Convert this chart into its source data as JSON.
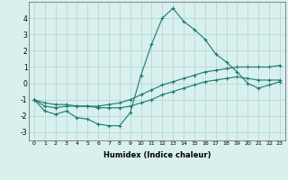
{
  "xlabel": "Humidex (Indice chaleur)",
  "x": [
    0,
    1,
    2,
    3,
    4,
    5,
    6,
    7,
    8,
    9,
    10,
    11,
    12,
    13,
    14,
    15,
    16,
    17,
    18,
    19,
    20,
    21,
    22,
    23
  ],
  "line1": [
    -1.0,
    -1.7,
    -1.9,
    -1.7,
    -2.1,
    -2.2,
    -2.5,
    -2.6,
    -2.6,
    -1.8,
    0.5,
    2.4,
    4.0,
    4.6,
    3.8,
    3.3,
    2.7,
    1.8,
    1.3,
    0.7,
    0.0,
    -0.3,
    -0.1,
    0.1
  ],
  "line2": [
    -1.0,
    -1.4,
    -1.5,
    -1.4,
    -1.4,
    -1.4,
    -1.4,
    -1.3,
    -1.2,
    -1.0,
    -0.7,
    -0.4,
    -0.1,
    0.1,
    0.3,
    0.5,
    0.7,
    0.8,
    0.9,
    1.0,
    1.0,
    1.0,
    1.0,
    1.1
  ],
  "line3": [
    -1.0,
    -1.2,
    -1.3,
    -1.3,
    -1.4,
    -1.4,
    -1.5,
    -1.5,
    -1.5,
    -1.4,
    -1.2,
    -1.0,
    -0.7,
    -0.5,
    -0.3,
    -0.1,
    0.1,
    0.2,
    0.3,
    0.4,
    0.3,
    0.2,
    0.2,
    0.2
  ],
  "line_color": "#1a7a6e",
  "bg_color": "#d8f0ee",
  "grid_color": "#b8d8d4",
  "ylim": [
    -3.5,
    5.0
  ],
  "xlim": [
    -0.5,
    23.5
  ],
  "yticks": [
    -3,
    -2,
    -1,
    0,
    1,
    2,
    3,
    4
  ],
  "xticks": [
    0,
    1,
    2,
    3,
    4,
    5,
    6,
    7,
    8,
    9,
    10,
    11,
    12,
    13,
    14,
    15,
    16,
    17,
    18,
    19,
    20,
    21,
    22,
    23
  ]
}
